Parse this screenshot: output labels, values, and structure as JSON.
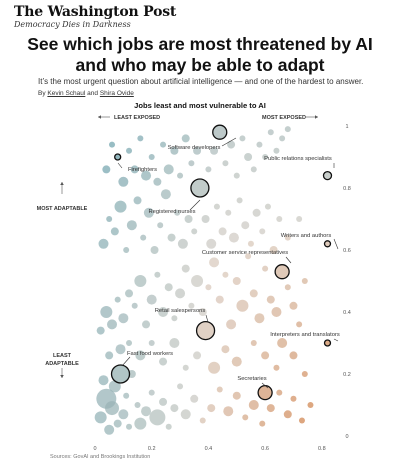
{
  "masthead": {
    "brand": "The Washington Post",
    "motto": "Democracy Dies in Darkness"
  },
  "article": {
    "headline": "See which jobs are most threatened by AI and who may be able to adapt",
    "dek": "It’s the most urgent question about artificial intelligence — and one of the hardest to answer.",
    "byline_prefix": "By",
    "authors": [
      "Kevin Schaul",
      "Shira Ovide"
    ],
    "byline_joiner": "and"
  },
  "source": "Sources: GovAI and Brookings Institution",
  "colors": {
    "teal": "#5b9aa8",
    "orange": "#cf7a3e",
    "neutral": "#d9cfc6",
    "highlight_ring": "#111111"
  },
  "chart_data": {
    "type": "scatter",
    "title": "Jobs least and most vulnerable to AI",
    "x_direction_labels": {
      "left": "LEAST EXPOSED",
      "right": "MOST EXPOSED"
    },
    "y_direction_labels": {
      "top": "MOST ADAPTABLE",
      "bottom": "LEAST ADAPTABLE"
    },
    "xlim": [
      0,
      0.85
    ],
    "ylim": [
      0,
      1
    ],
    "x_ticks": [
      "0",
      "0.2",
      "0.4",
      "0.6",
      "0.8"
    ],
    "y_ticks": [
      "0",
      "0.2",
      "0.4",
      "0.6",
      "0.8",
      "1"
    ],
    "grid": false,
    "highlighted": [
      {
        "label": "Software developers",
        "x": 0.44,
        "y": 0.98,
        "size": 7
      },
      {
        "label": "Public relations specialists",
        "x": 0.82,
        "y": 0.84,
        "size": 4
      },
      {
        "label": "Firefighters",
        "x": 0.08,
        "y": 0.9,
        "size": 3
      },
      {
        "label": "Registered nurses",
        "x": 0.37,
        "y": 0.8,
        "size": 9
      },
      {
        "label": "Writers and authors",
        "x": 0.82,
        "y": 0.62,
        "size": 3
      },
      {
        "label": "Customer service representatives",
        "x": 0.66,
        "y": 0.53,
        "size": 7
      },
      {
        "label": "Retail salespersons",
        "x": 0.39,
        "y": 0.34,
        "size": 9
      },
      {
        "label": "Interpreters and translators",
        "x": 0.82,
        "y": 0.3,
        "size": 3
      },
      {
        "label": "Fast food workers",
        "x": 0.09,
        "y": 0.2,
        "size": 9
      },
      {
        "label": "Secretaries",
        "x": 0.6,
        "y": 0.14,
        "size": 7
      }
    ],
    "points": [
      [
        0.02,
        0.06,
        6
      ],
      [
        0.04,
        0.12,
        10
      ],
      [
        0.05,
        0.02,
        5
      ],
      [
        0.06,
        0.09,
        7
      ],
      [
        0.08,
        0.04,
        4
      ],
      [
        0.03,
        0.18,
        5
      ],
      [
        0.07,
        0.16,
        6
      ],
      [
        0.1,
        0.07,
        5
      ],
      [
        0.12,
        0.03,
        3
      ],
      [
        0.05,
        0.26,
        4
      ],
      [
        0.09,
        0.28,
        5
      ],
      [
        0.11,
        0.13,
        3
      ],
      [
        0.13,
        0.2,
        4
      ],
      [
        0.15,
        0.1,
        3
      ],
      [
        0.16,
        0.04,
        6
      ],
      [
        0.18,
        0.08,
        5
      ],
      [
        0.2,
        0.14,
        3
      ],
      [
        0.22,
        0.06,
        8
      ],
      [
        0.24,
        0.11,
        4
      ],
      [
        0.26,
        0.03,
        3
      ],
      [
        0.28,
        0.09,
        4
      ],
      [
        0.3,
        0.16,
        3
      ],
      [
        0.32,
        0.07,
        5
      ],
      [
        0.35,
        0.12,
        4
      ],
      [
        0.38,
        0.05,
        3
      ],
      [
        0.41,
        0.09,
        4
      ],
      [
        0.44,
        0.15,
        3
      ],
      [
        0.47,
        0.08,
        5
      ],
      [
        0.5,
        0.13,
        4
      ],
      [
        0.53,
        0.06,
        3
      ],
      [
        0.56,
        0.1,
        5
      ],
      [
        0.59,
        0.04,
        3
      ],
      [
        0.62,
        0.09,
        4
      ],
      [
        0.65,
        0.14,
        3
      ],
      [
        0.68,
        0.07,
        4
      ],
      [
        0.7,
        0.12,
        3
      ],
      [
        0.73,
        0.05,
        3
      ],
      [
        0.76,
        0.1,
        3
      ],
      [
        0.02,
        0.34,
        4
      ],
      [
        0.04,
        0.4,
        6
      ],
      [
        0.06,
        0.36,
        5
      ],
      [
        0.08,
        0.44,
        3
      ],
      [
        0.1,
        0.38,
        5
      ],
      [
        0.12,
        0.46,
        4
      ],
      [
        0.14,
        0.42,
        3
      ],
      [
        0.16,
        0.5,
        6
      ],
      [
        0.18,
        0.36,
        4
      ],
      [
        0.2,
        0.44,
        5
      ],
      [
        0.22,
        0.52,
        3
      ],
      [
        0.24,
        0.4,
        5
      ],
      [
        0.26,
        0.48,
        4
      ],
      [
        0.28,
        0.38,
        3
      ],
      [
        0.3,
        0.46,
        5
      ],
      [
        0.32,
        0.54,
        4
      ],
      [
        0.34,
        0.42,
        3
      ],
      [
        0.36,
        0.5,
        6
      ],
      [
        0.38,
        0.4,
        4
      ],
      [
        0.4,
        0.48,
        3
      ],
      [
        0.42,
        0.56,
        5
      ],
      [
        0.44,
        0.44,
        4
      ],
      [
        0.46,
        0.52,
        3
      ],
      [
        0.48,
        0.36,
        5
      ],
      [
        0.5,
        0.5,
        4
      ],
      [
        0.52,
        0.42,
        6
      ],
      [
        0.54,
        0.58,
        3
      ],
      [
        0.56,
        0.46,
        4
      ],
      [
        0.58,
        0.38,
        5
      ],
      [
        0.6,
        0.54,
        3
      ],
      [
        0.62,
        0.44,
        4
      ],
      [
        0.64,
        0.4,
        5
      ],
      [
        0.68,
        0.48,
        3
      ],
      [
        0.7,
        0.42,
        4
      ],
      [
        0.72,
        0.36,
        3
      ],
      [
        0.74,
        0.5,
        3
      ],
      [
        0.66,
        0.3,
        5
      ],
      [
        0.6,
        0.26,
        4
      ],
      [
        0.56,
        0.3,
        3
      ],
      [
        0.5,
        0.24,
        5
      ],
      [
        0.46,
        0.28,
        4
      ],
      [
        0.42,
        0.22,
        6
      ],
      [
        0.36,
        0.26,
        4
      ],
      [
        0.32,
        0.22,
        3
      ],
      [
        0.28,
        0.3,
        5
      ],
      [
        0.24,
        0.24,
        4
      ],
      [
        0.2,
        0.3,
        3
      ],
      [
        0.16,
        0.26,
        5
      ],
      [
        0.12,
        0.3,
        3
      ],
      [
        0.64,
        0.22,
        3
      ],
      [
        0.7,
        0.26,
        4
      ],
      [
        0.74,
        0.2,
        3
      ],
      [
        0.03,
        0.62,
        5
      ],
      [
        0.05,
        0.7,
        3
      ],
      [
        0.07,
        0.66,
        4
      ],
      [
        0.09,
        0.74,
        6
      ],
      [
        0.11,
        0.6,
        3
      ],
      [
        0.13,
        0.68,
        5
      ],
      [
        0.15,
        0.76,
        4
      ],
      [
        0.17,
        0.64,
        3
      ],
      [
        0.19,
        0.72,
        5
      ],
      [
        0.21,
        0.6,
        4
      ],
      [
        0.23,
        0.68,
        3
      ],
      [
        0.25,
        0.78,
        5
      ],
      [
        0.27,
        0.64,
        4
      ],
      [
        0.29,
        0.72,
        3
      ],
      [
        0.31,
        0.62,
        5
      ],
      [
        0.33,
        0.7,
        4
      ],
      [
        0.35,
        0.66,
        3
      ],
      [
        0.39,
        0.7,
        4
      ],
      [
        0.41,
        0.62,
        5
      ],
      [
        0.43,
        0.74,
        3
      ],
      [
        0.45,
        0.66,
        4
      ],
      [
        0.47,
        0.72,
        3
      ],
      [
        0.49,
        0.64,
        5
      ],
      [
        0.51,
        0.76,
        3
      ],
      [
        0.53,
        0.68,
        4
      ],
      [
        0.55,
        0.62,
        3
      ],
      [
        0.57,
        0.72,
        4
      ],
      [
        0.59,
        0.66,
        3
      ],
      [
        0.61,
        0.74,
        3
      ],
      [
        0.63,
        0.6,
        4
      ],
      [
        0.65,
        0.7,
        3
      ],
      [
        0.68,
        0.64,
        3
      ],
      [
        0.72,
        0.7,
        3
      ],
      [
        0.04,
        0.86,
        4
      ],
      [
        0.06,
        0.94,
        3
      ],
      [
        0.1,
        0.82,
        5
      ],
      [
        0.12,
        0.92,
        3
      ],
      [
        0.14,
        0.86,
        4
      ],
      [
        0.16,
        0.96,
        3
      ],
      [
        0.18,
        0.84,
        5
      ],
      [
        0.2,
        0.9,
        3
      ],
      [
        0.22,
        0.82,
        4
      ],
      [
        0.24,
        0.94,
        3
      ],
      [
        0.26,
        0.86,
        5
      ],
      [
        0.28,
        0.92,
        4
      ],
      [
        0.3,
        0.84,
        3
      ],
      [
        0.32,
        0.96,
        4
      ],
      [
        0.34,
        0.88,
        3
      ],
      [
        0.36,
        0.92,
        4
      ],
      [
        0.4,
        0.86,
        3
      ],
      [
        0.42,
        0.92,
        4
      ],
      [
        0.46,
        0.88,
        3
      ],
      [
        0.48,
        0.94,
        4
      ],
      [
        0.5,
        0.84,
        3
      ],
      [
        0.52,
        0.96,
        3
      ],
      [
        0.54,
        0.9,
        4
      ],
      [
        0.56,
        0.86,
        3
      ],
      [
        0.58,
        0.94,
        3
      ],
      [
        0.6,
        0.9,
        3
      ],
      [
        0.62,
        0.98,
        3
      ],
      [
        0.64,
        0.92,
        3
      ],
      [
        0.66,
        0.96,
        3
      ],
      [
        0.68,
        0.99,
        3
      ]
    ]
  }
}
